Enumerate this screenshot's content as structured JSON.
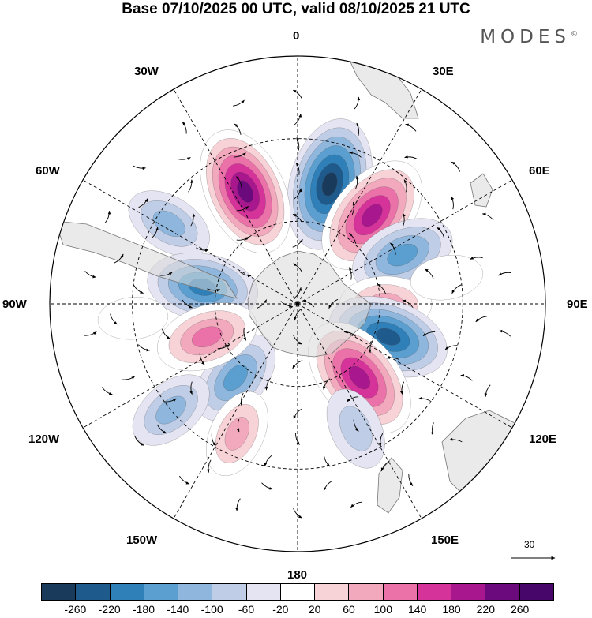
{
  "title": "Base 07/10/2025 00 UTC, valid 08/10/2025 21 UTC",
  "brand": "MODES",
  "brand_mark": "©",
  "longitude_labels": {
    "n0": "0",
    "n30e": "30E",
    "n60e": "60E",
    "n90e": "90E",
    "n120e": "120E",
    "n150e": "150E",
    "n180": "180",
    "n150w": "150W",
    "n120w": "120W",
    "n90w": "90W",
    "n60w": "60W",
    "n30w": "30W"
  },
  "wind_reference": {
    "value": "30"
  },
  "colorbar": {
    "colors": [
      "#1a3a5c",
      "#1f5a8c",
      "#2f7fb8",
      "#5a9fcf",
      "#8fb6dc",
      "#bfcde6",
      "#e4e4f2",
      "#ffffff",
      "#f7d2d6",
      "#f2a9bd",
      "#eb72a8",
      "#d6339a",
      "#a8178d",
      "#6b0a7d",
      "#46066a"
    ],
    "tick_labels": [
      "-260",
      "-220",
      "-180",
      "-140",
      "-100",
      "-60",
      "-20",
      "20",
      "60",
      "100",
      "140",
      "180",
      "220",
      "260"
    ]
  },
  "anomaly_centers": [
    {
      "lon": 15,
      "lat": -45,
      "value": -270
    },
    {
      "lon": -25,
      "lat": -45,
      "value": 260
    },
    {
      "lon": 40,
      "lat": -48,
      "value": 245
    },
    {
      "lon": -58,
      "lat": -35,
      "value": -110
    },
    {
      "lon": 65,
      "lat": -48,
      "value": -170
    },
    {
      "lon": -80,
      "lat": -55,
      "value": -190
    },
    {
      "lon": 90,
      "lat": -58,
      "value": 120
    },
    {
      "lon": 110,
      "lat": -55,
      "value": -230
    },
    {
      "lon": 140,
      "lat": -55,
      "value": 255
    },
    {
      "lon": -140,
      "lat": -55,
      "value": -150
    },
    {
      "lon": -110,
      "lat": -55,
      "value": 160
    },
    {
      "lon": -130,
      "lat": -30,
      "value": -110
    },
    {
      "lon": -155,
      "lat": -38,
      "value": 110
    },
    {
      "lon": 155,
      "lat": -40,
      "value": -90
    },
    {
      "lon": 80,
      "lat": -35,
      "value": 50
    },
    {
      "lon": -95,
      "lat": -30,
      "value": 40
    }
  ]
}
